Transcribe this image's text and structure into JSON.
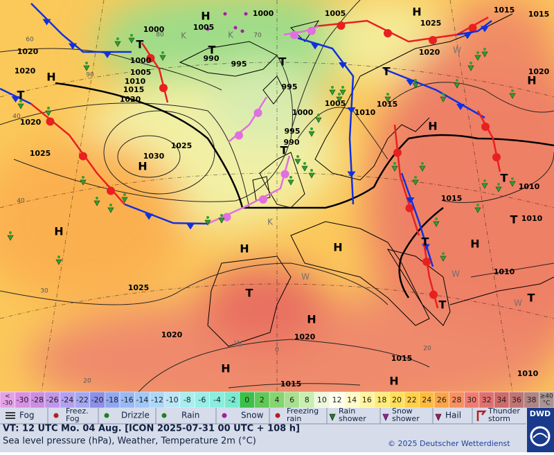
{
  "map": {
    "isobar_labels": [
      "1000",
      "1005",
      "1005",
      "1000",
      "1025",
      "1015",
      "1015",
      "1020",
      "1000",
      "1005",
      "1010",
      "1015",
      "1020",
      "1020",
      "990",
      "995",
      "995",
      "1000",
      "1005",
      "1010",
      "1015",
      "995",
      "990",
      "1030",
      "1025",
      "1025",
      "1020",
      "1020",
      "1020",
      "1010",
      "1015",
      "1010",
      "1010",
      "1025",
      "1020",
      "1020",
      "1015",
      "1015",
      "1010"
    ],
    "pressure_centers": [
      "H",
      "H",
      "H",
      "H",
      "H",
      "H",
      "H",
      "H",
      "H",
      "H",
      "H",
      "H",
      "H",
      "T",
      "T",
      "T",
      "T",
      "T",
      "T",
      "T",
      "T",
      "T",
      "T",
      "T",
      "T"
    ],
    "airmass_labels": [
      "K",
      "K",
      "W",
      "W",
      "W",
      "W",
      "W",
      "K"
    ],
    "isotherm_labels": [
      "60",
      "80",
      "90",
      "40",
      "40",
      "30",
      "20",
      "0",
      "20",
      "70"
    ]
  },
  "scale": {
    "cells": [
      {
        "label_top": "<",
        "label": "-30",
        "color": "#e4a0e8"
      },
      {
        "label": "-30",
        "color": "#d890e4"
      },
      {
        "label": "-28",
        "color": "#cc8ee4"
      },
      {
        "label": "-26",
        "color": "#c096ea"
      },
      {
        "label": "-24",
        "color": "#b4a0f0"
      },
      {
        "label": "-22",
        "color": "#a4a8f0"
      },
      {
        "label": "-20",
        "color": "#8c90e8"
      },
      {
        "label": "-18",
        "color": "#90a8f0"
      },
      {
        "label": "-16",
        "color": "#98b8f6"
      },
      {
        "label": "-14",
        "color": "#a0c8f8"
      },
      {
        "label": "-12",
        "color": "#acd8f8"
      },
      {
        "label": "-10",
        "color": "#bce6f8"
      },
      {
        "label": "-8",
        "color": "#a8eef0"
      },
      {
        "label": "-6",
        "color": "#98eee8"
      },
      {
        "label": "-4",
        "color": "#88eee0"
      },
      {
        "label": "-2",
        "color": "#78ead0"
      },
      {
        "label": "0",
        "color": "#3cc048"
      },
      {
        "label": "2",
        "color": "#60c858"
      },
      {
        "label": "4",
        "color": "#84d470"
      },
      {
        "label": "6",
        "color": "#a8e090"
      },
      {
        "label": "8",
        "color": "#c8eeb0"
      },
      {
        "label": "10",
        "color": "#eef8dc"
      },
      {
        "label": "12",
        "color": "#fffff0"
      },
      {
        "label": "14",
        "color": "#fffac8"
      },
      {
        "label": "16",
        "color": "#fff4a0"
      },
      {
        "label": "18",
        "color": "#ffec78"
      },
      {
        "label": "20",
        "color": "#ffe058"
      },
      {
        "label": "22",
        "color": "#ffd048"
      },
      {
        "label": "24",
        "color": "#ffbc3c"
      },
      {
        "label": "26",
        "color": "#fca448"
      },
      {
        "label": "28",
        "color": "#f89060"
      },
      {
        "label": "30",
        "color": "#f07c70"
      },
      {
        "label": "32",
        "color": "#e07070"
      },
      {
        "label": "34",
        "color": "#d06a6a"
      },
      {
        "label": "36",
        "color": "#c07474"
      },
      {
        "label": "38",
        "color": "#b08484"
      },
      {
        "label": "≥40",
        "label_bottom": "°C",
        "color": "#a89494"
      }
    ]
  },
  "weather_legend": [
    {
      "lines": [
        "Fog"
      ]
    },
    {
      "lines": [
        "Freez.",
        "Fog"
      ]
    },
    {
      "lines": [
        "Drizzle"
      ]
    },
    {
      "lines": [
        "Rain"
      ]
    },
    {
      "lines": [
        "Snow"
      ]
    },
    {
      "lines": [
        "Freezing",
        "rain"
      ]
    },
    {
      "lines": [
        "Rain",
        "shower"
      ]
    },
    {
      "lines": [
        "Snow",
        "shower"
      ]
    },
    {
      "lines": [
        "Hail"
      ]
    },
    {
      "lines": [
        "Thunder",
        "storm"
      ]
    }
  ],
  "footer": {
    "valid_time": "VT: 12 UTC Mo.  04 Aug. [ICON 2025-07-31  00 UTC + 108 h]",
    "description": "Sea level pressure (hPa), Weather, Temperature 2m (°C)",
    "copyright": "© 2025 Deutscher Wetterdienst",
    "logo": "DWD"
  }
}
